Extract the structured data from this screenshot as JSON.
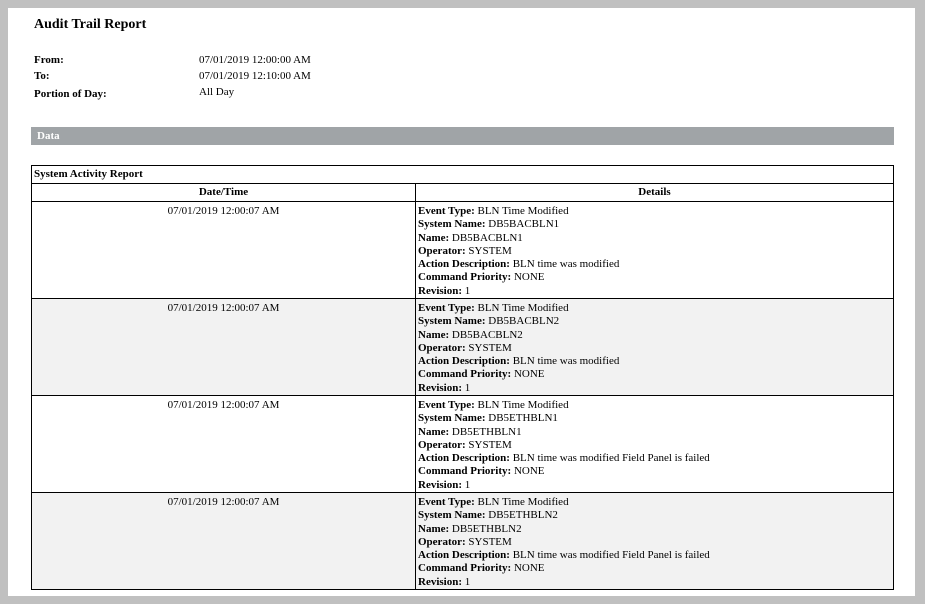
{
  "report": {
    "title": "Audit Trail Report",
    "meta": [
      {
        "label": "From:",
        "value": "07/01/2019 12:00:00 AM"
      },
      {
        "label": "To:",
        "value": "07/01/2019 12:10:00 AM"
      },
      {
        "label": "Portion of Day:",
        "value": "All Day"
      }
    ],
    "section_label": "Data"
  },
  "table": {
    "caption": "System Activity Report",
    "columns": [
      "Date/Time",
      "Details"
    ],
    "rows": [
      {
        "datetime": "07/01/2019 12:00:07 AM",
        "details": [
          [
            "Event Type:",
            "BLN Time Modified"
          ],
          [
            "System Name:",
            "DB5BACBLN1"
          ],
          [
            "Name:",
            "DB5BACBLN1"
          ],
          [
            "Operator:",
            "SYSTEM"
          ],
          [
            "Action Description:",
            "BLN time was modified"
          ],
          [
            "Command Priority:",
            "NONE"
          ],
          [
            "Revision:",
            "1"
          ]
        ]
      },
      {
        "datetime": "07/01/2019 12:00:07 AM",
        "details": [
          [
            "Event Type:",
            "BLN Time Modified"
          ],
          [
            "System Name:",
            "DB5BACBLN2"
          ],
          [
            "Name:",
            "DB5BACBLN2"
          ],
          [
            "Operator:",
            "SYSTEM"
          ],
          [
            "Action Description:",
            "BLN time was modified"
          ],
          [
            "Command Priority:",
            "NONE"
          ],
          [
            "Revision:",
            "1"
          ]
        ]
      },
      {
        "datetime": "07/01/2019 12:00:07 AM",
        "details": [
          [
            "Event Type:",
            "BLN Time Modified"
          ],
          [
            "System Name:",
            "DB5ETHBLN1"
          ],
          [
            "Name:",
            "DB5ETHBLN1"
          ],
          [
            "Operator:",
            "SYSTEM"
          ],
          [
            "Action Description:",
            "BLN time was modified Field Panel is failed"
          ],
          [
            "Command Priority:",
            "NONE"
          ],
          [
            "Revision:",
            "1"
          ]
        ]
      },
      {
        "datetime": "07/01/2019 12:00:07 AM",
        "details": [
          [
            "Event Type:",
            "BLN Time Modified"
          ],
          [
            "System Name:",
            "DB5ETHBLN2"
          ],
          [
            "Name:",
            "DB5ETHBLN2"
          ],
          [
            "Operator:",
            "SYSTEM"
          ],
          [
            "Action Description:",
            "BLN time was modified Field Panel is failed"
          ],
          [
            "Command Priority:",
            "NONE"
          ],
          [
            "Revision:",
            "1"
          ]
        ]
      }
    ]
  }
}
